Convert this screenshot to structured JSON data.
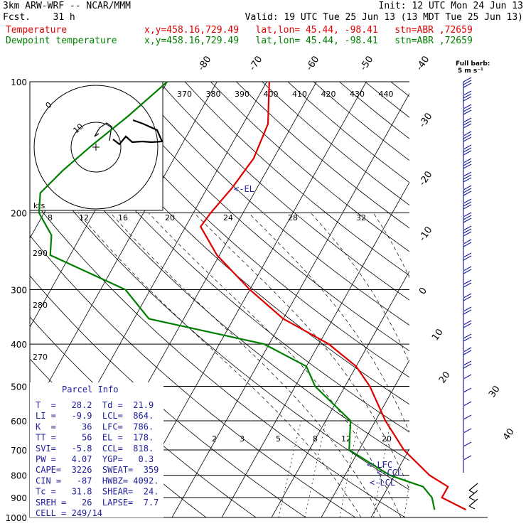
{
  "header": {
    "model": "3km ARW-WRF -- NCAR/MMM",
    "init": "Init: 12 UTC Mon 24 Jun 13",
    "fcst": "Fcst.    31 h",
    "valid": "Valid: 19 UTC Tue 25 Jun 13 (13 MDT Tue 25 Jun 13)",
    "temp_label": "Temperature",
    "temp_loc": "x,y=458.16,729.49   lat,lon= 45.44, -98.41   stn=ABR ,72659",
    "dew_label": "Dewpoint temperature",
    "dew_loc": "x,y=458.16,729.49   lat,lon= 45.44, -98.41   stn=ABR ,72659"
  },
  "colors": {
    "temperature": "#e00000",
    "dewpoint": "#008000",
    "annotation": "#2020a0"
  },
  "barb_note": {
    "line1": "Full barb:",
    "line2": "5 m s⁻¹"
  },
  "hodograph": {
    "units": "kts",
    "ring_labels": [
      "0",
      "10"
    ]
  },
  "parcel_info": {
    "title": "Parcel Info",
    "rows": [
      "T  =   28.2  Td =  21.9",
      "LI =   -9.9  LCL=  864.",
      "K  =     36  LFC=  786.",
      "TT =     56  EL =  178.",
      "SVI=   -5.8  CCL=  818.",
      "PW =   4.07  YGP=   0.3",
      "CAPE=  3226  SWEAT=  359",
      "CIN =   -87  HWBZ= 4092.",
      "Tc =   31.8  SHEAR=  24.",
      "SREH =   26  LAPSE=  7.7",
      "CELL = 249/14"
    ]
  },
  "levels": {
    "el": "<-EL",
    "lfc": "<-LFC",
    "ccl": "<-CCL",
    "lcl": "<-LCL"
  },
  "chart_data": {
    "type": "line",
    "pressure_ticks": [
      100,
      200,
      300,
      400,
      500,
      600,
      700,
      800,
      900,
      1000
    ],
    "isotherm_labels": [
      "-80",
      "-70",
      "-60",
      "-50",
      "-40",
      "-30",
      "-20",
      "-10",
      "0",
      "10",
      "20",
      "30",
      "40"
    ],
    "theta_labels": [
      "370",
      "380",
      "390",
      "400",
      "410",
      "420",
      "430",
      "440"
    ],
    "theta_lower_labels": [
      "290",
      "280",
      "270"
    ],
    "mixing_ratio_labels": [
      "2",
      "3",
      "5",
      "8",
      "12",
      "20"
    ],
    "theta_e_labels": [
      "8",
      "12",
      "16",
      "20",
      "24",
      "28",
      "32"
    ],
    "series": [
      {
        "name": "Temperature",
        "points": [
          [
            100,
            -59.5
          ],
          [
            125,
            -55
          ],
          [
            150,
            -54
          ],
          [
            175,
            -55
          ],
          [
            200,
            -56.5
          ],
          [
            215,
            -57
          ],
          [
            250,
            -50.5
          ],
          [
            300,
            -40
          ],
          [
            350,
            -30
          ],
          [
            400,
            -18
          ],
          [
            450,
            -10
          ],
          [
            500,
            -5
          ],
          [
            600,
            2
          ],
          [
            700,
            9
          ],
          [
            800,
            17
          ],
          [
            850,
            22
          ],
          [
            875,
            22
          ],
          [
            900,
            22
          ],
          [
            960,
            28.2
          ]
        ]
      },
      {
        "name": "Dewpoint temperature",
        "points": [
          [
            100,
            -80
          ],
          [
            120,
            -84
          ],
          [
            140,
            -88
          ],
          [
            160,
            -91
          ],
          [
            180,
            -93
          ],
          [
            200,
            -91
          ],
          [
            225,
            -86
          ],
          [
            250,
            -84
          ],
          [
            300,
            -65
          ],
          [
            350,
            -57
          ],
          [
            400,
            -31
          ],
          [
            450,
            -20
          ],
          [
            500,
            -16
          ],
          [
            600,
            -5
          ],
          [
            700,
            -2
          ],
          [
            800,
            9
          ],
          [
            850,
            17
          ],
          [
            900,
            20
          ],
          [
            960,
            21.9
          ]
        ]
      }
    ]
  }
}
